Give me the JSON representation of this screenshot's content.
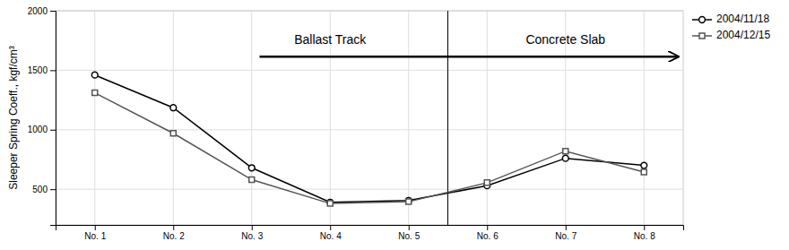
{
  "chart_data": {
    "type": "line",
    "categories": [
      "No. 1",
      "No. 2",
      "No. 3",
      "No. 4",
      "No. 5",
      "No. 6",
      "No. 7",
      "No. 8"
    ],
    "series": [
      {
        "name": "2004/11/18",
        "color": "#000000",
        "marker": "circle",
        "values": [
          1460,
          1185,
          680,
          390,
          405,
          530,
          760,
          700
        ]
      },
      {
        "name": "2004/12/15",
        "color": "#555555",
        "marker": "square",
        "values": [
          1310,
          970,
          580,
          380,
          395,
          555,
          820,
          645
        ]
      }
    ],
    "ylabel": "Sleeper Spring Coeff., kgf/cm³",
    "ylim": [
      200,
      2000
    ],
    "yticks": [
      500,
      1000,
      1500,
      2000
    ],
    "grid": true,
    "legend": "upper right",
    "annotations": [
      {
        "text": "Ballast Track",
        "x": "No. 4",
        "y": 1720
      },
      {
        "text": "Concrete Slab",
        "x": "No. 7",
        "y": 1720
      }
    ]
  }
}
